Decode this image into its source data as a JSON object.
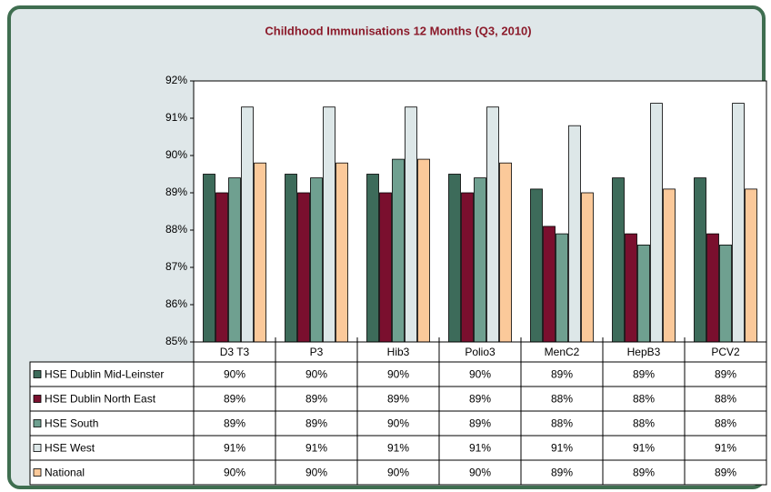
{
  "chart_data": {
    "type": "bar",
    "title": "Childhood Immunisations 12 Months (Q3, 2010)",
    "categories": [
      "D3 T3",
      "P3",
      "Hib3",
      "Polio3",
      "MenC2",
      "HepB3",
      "PCV2"
    ],
    "series": [
      {
        "name": "HSE Dublin Mid-Leinster",
        "color": "#3d6b5a",
        "values": [
          89.5,
          89.5,
          89.5,
          89.5,
          89.1,
          89.4,
          89.4
        ],
        "value_labels": [
          "90%",
          "90%",
          "90%",
          "90%",
          "89%",
          "89%",
          "89%"
        ]
      },
      {
        "name": "HSE Dublin North East",
        "color": "#7a0f2e",
        "values": [
          89.0,
          89.0,
          89.0,
          89.0,
          88.1,
          87.9,
          87.9
        ],
        "value_labels": [
          "89%",
          "89%",
          "89%",
          "89%",
          "88%",
          "88%",
          "88%"
        ]
      },
      {
        "name": "HSE South",
        "color": "#6fa090",
        "values": [
          89.4,
          89.4,
          89.9,
          89.4,
          87.9,
          87.6,
          87.6
        ],
        "value_labels": [
          "89%",
          "89%",
          "90%",
          "89%",
          "88%",
          "88%",
          "88%"
        ]
      },
      {
        "name": "HSE West",
        "color": "#dde7e8",
        "values": [
          91.3,
          91.3,
          91.3,
          91.3,
          90.8,
          91.4,
          91.4
        ],
        "value_labels": [
          "91%",
          "91%",
          "91%",
          "91%",
          "91%",
          "91%",
          "91%"
        ]
      },
      {
        "name": "National",
        "color": "#fbc99a",
        "values": [
          89.8,
          89.8,
          89.9,
          89.8,
          89.0,
          89.1,
          89.1
        ],
        "value_labels": [
          "90%",
          "90%",
          "90%",
          "90%",
          "89%",
          "89%",
          "89%"
        ]
      }
    ],
    "ylim": [
      85,
      92
    ],
    "yticks": [
      {
        "value": 85,
        "label": "85%"
      },
      {
        "value": 86,
        "label": "86%"
      },
      {
        "value": 87,
        "label": "87%"
      },
      {
        "value": 88,
        "label": "88%"
      },
      {
        "value": 89,
        "label": "89%"
      },
      {
        "value": 90,
        "label": "90%"
      },
      {
        "value": 91,
        "label": "91%"
      },
      {
        "value": 92,
        "label": "92%"
      }
    ]
  }
}
